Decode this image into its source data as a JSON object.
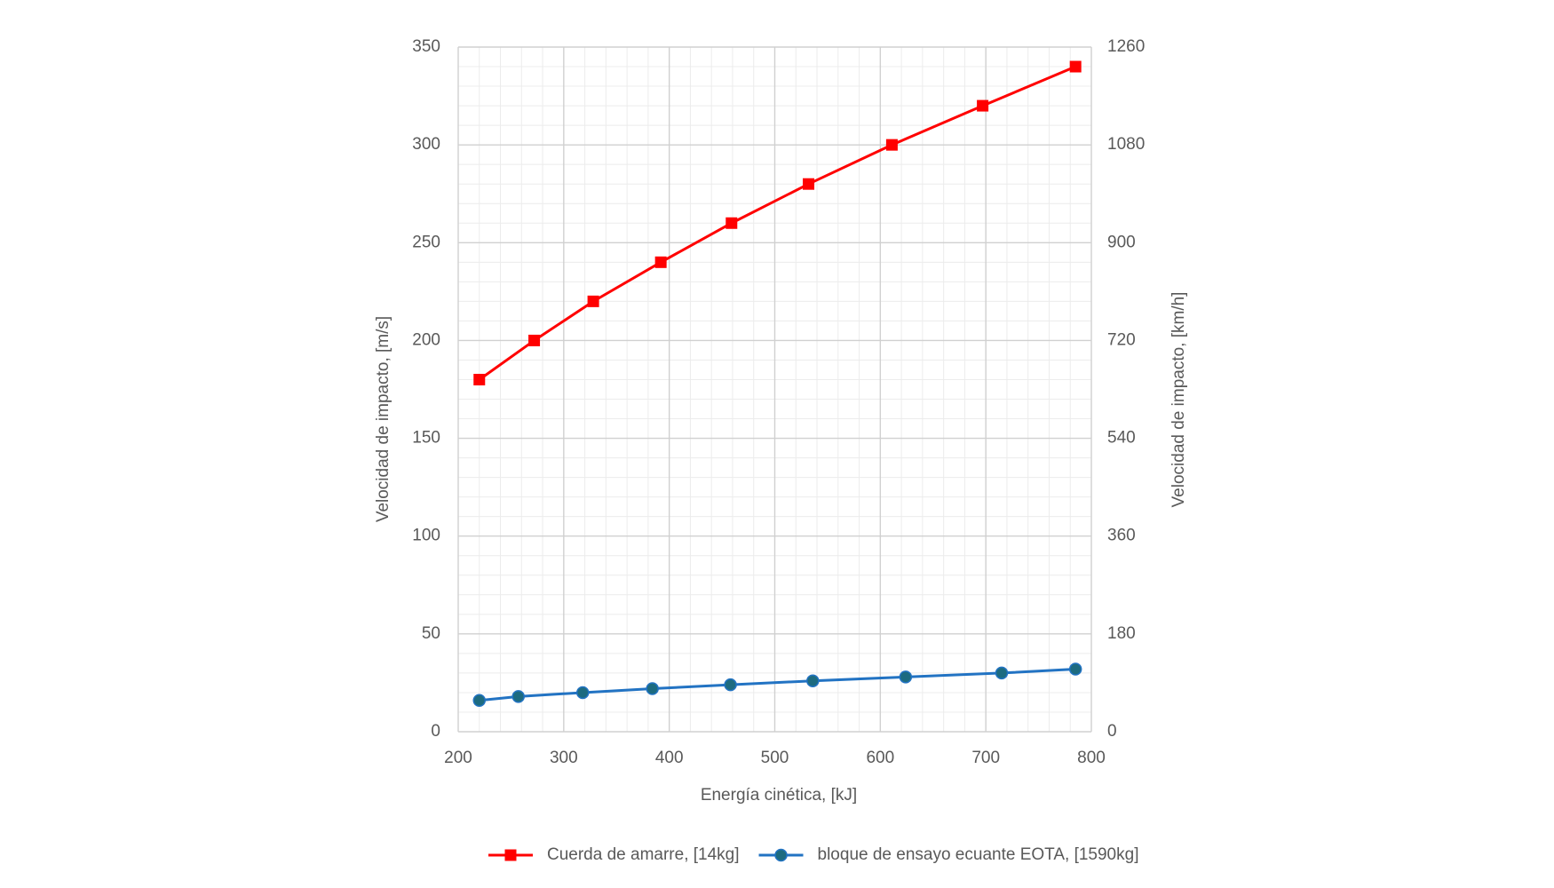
{
  "chart_data": {
    "type": "line",
    "x_label": "Energía cinética, [kJ]",
    "y_label": "Velocidad de impacto, [m/s]",
    "y2_label": "Velocidad de impacto, [km/h]",
    "xlim": [
      200,
      800
    ],
    "xticks": [
      200,
      300,
      400,
      500,
      600,
      700,
      800
    ],
    "ylim": [
      0,
      350
    ],
    "yticks": [
      0,
      50,
      100,
      150,
      200,
      250,
      300,
      350
    ],
    "y2lim": [
      0,
      1260
    ],
    "y2ticks": [
      0,
      180,
      360,
      540,
      720,
      900,
      1080,
      1260
    ],
    "grid": true,
    "minor_grid": true,
    "legend": "bottom",
    "series": [
      {
        "name": "Cuerda de amarre, [14kg]",
        "color": "#ff0000",
        "marker": "square",
        "marker_color": "#ff0000",
        "x": [
          220,
          272,
          328,
          392,
          459,
          532,
          611,
          697,
          785
        ],
        "values": [
          180,
          200,
          220,
          240,
          260,
          280,
          300,
          320,
          340
        ]
      },
      {
        "name": "bloque de ensayo ecuante EOTA, [1590kg]",
        "color": "#2273c3",
        "marker": "circle",
        "marker_color": "#1d6b80",
        "x": [
          220,
          257,
          318,
          384,
          458,
          536,
          624,
          715,
          785
        ],
        "values": [
          16,
          18,
          20,
          22,
          24,
          26,
          28,
          30,
          32
        ]
      }
    ]
  }
}
